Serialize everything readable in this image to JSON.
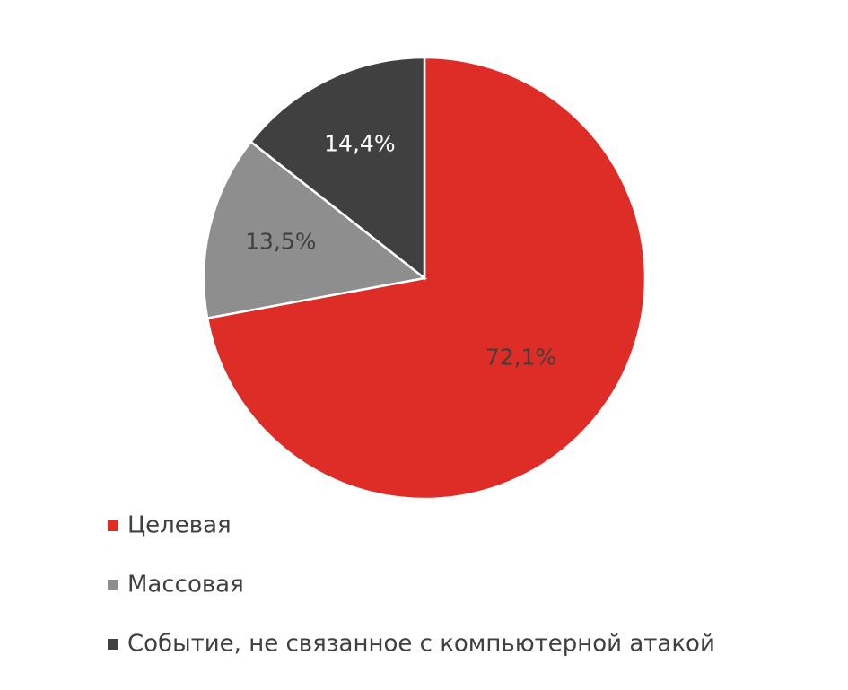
{
  "chart_data": {
    "type": "pie",
    "categories": [
      "Целевая",
      "Массовая",
      "Событие, не связанное с компьютерной атакой"
    ],
    "values": [
      72.1,
      13.5,
      14.4
    ],
    "value_labels": [
      "72,1%",
      "13,5%",
      "14,4%"
    ],
    "colors": [
      "#de2c26",
      "#8e8e8e",
      "#404040"
    ]
  }
}
